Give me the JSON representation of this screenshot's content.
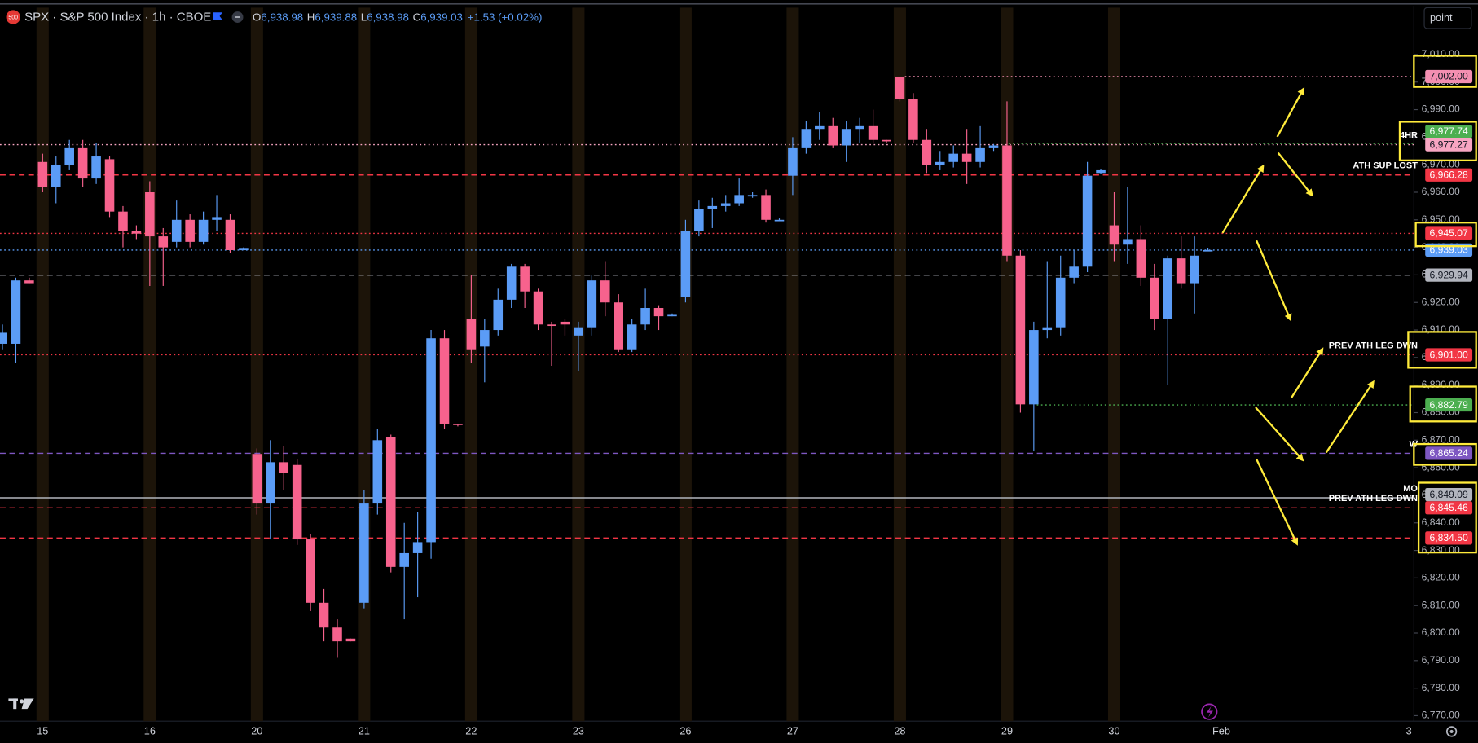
{
  "header": {
    "badge": "500",
    "symbol": "SPX · S&P 500 Index · 1h · CBOE",
    "ohlc": [
      {
        "key": "O",
        "value": "6,938.98"
      },
      {
        "key": "H",
        "value": "6,939.88"
      },
      {
        "key": "L",
        "value": "6,938.98"
      },
      {
        "key": "C",
        "value": "6,939.03"
      }
    ],
    "change": "+1.53 (+0.02%)"
  },
  "toolbar": {
    "scale_button": "point"
  },
  "chart_data": {
    "type": "candlestick",
    "up_color": "#5b9cf6",
    "down_color": "#f7628d",
    "categories": [
      null,
      null,
      null,
      "15",
      null,
      null,
      null,
      null,
      null,
      null,
      null,
      "16",
      null,
      null,
      null,
      null,
      null,
      null,
      null,
      "20",
      null,
      null,
      null,
      null,
      null,
      null,
      null,
      "21",
      null,
      null,
      null,
      null,
      null,
      null,
      null,
      "22",
      null,
      null,
      null,
      null,
      null,
      null,
      null,
      "23",
      null,
      null,
      null,
      null,
      null,
      null,
      null,
      "26",
      null,
      null,
      null,
      null,
      null,
      null,
      null,
      "27",
      null,
      null,
      null,
      null,
      null,
      null,
      null,
      "28",
      null,
      null,
      null,
      null,
      null,
      null,
      null,
      "29",
      null,
      null,
      null,
      null,
      null,
      null,
      null,
      "30",
      null,
      null,
      null,
      null,
      null,
      null,
      null,
      "Feb",
      null,
      null,
      null,
      null,
      null,
      null,
      null,
      null,
      null,
      null,
      null,
      null,
      null,
      "3"
    ],
    "open": [
      6905,
      6905,
      6928,
      6971,
      6962,
      6970,
      6976,
      6965,
      6972,
      6953,
      6946,
      6960,
      6944,
      6942,
      6950,
      6942,
      6950,
      6950,
      6939,
      6865,
      6847,
      6862,
      6861,
      6834,
      6811,
      6802,
      6798,
      6811,
      6847,
      6871,
      6824,
      6829,
      6833,
      6907,
      6876,
      6914,
      6904,
      6910,
      6921,
      6933,
      6924,
      6912,
      6913,
      6908,
      6911,
      6928,
      6920,
      6903,
      6912,
      6918,
      6915,
      6922,
      6946,
      6954,
      6955,
      6956,
      6958.5,
      6959,
      6949.5,
      6966,
      6976,
      6983,
      6984,
      6977,
      6983,
      6984,
      6979,
      7002,
      6994,
      6979,
      6970,
      6971,
      6974,
      6971,
      6976,
      6977,
      6937,
      6883,
      6910,
      6911,
      6929,
      6933,
      6967,
      6948,
      6941,
      6943,
      6929,
      6914,
      6936,
      6927,
      6938.98,
      null,
      null,
      null,
      null,
      null,
      null,
      null,
      null,
      null,
      null,
      null,
      null,
      null,
      null,
      null
    ],
    "high": [
      6912,
      6929,
      6929,
      6974,
      6973,
      6979,
      6979,
      6978,
      6973,
      6955,
      6948,
      6964,
      6947,
      6957,
      6952,
      6953,
      6959,
      6952,
      6940,
      6867,
      6870,
      6868,
      6863,
      6836,
      6816,
      6805,
      6798,
      6852,
      6874,
      6872,
      6840,
      6844,
      6910,
      6910,
      6876,
      6930,
      6914,
      6925,
      6934,
      6934,
      6925,
      6913,
      6914,
      6913,
      6930,
      6935,
      6923,
      6914,
      6925,
      6919,
      6916,
      6950,
      6957,
      6958,
      6959,
      6965,
      6960,
      6961,
      6950.5,
      6980,
      6986,
      6989,
      6987,
      6986,
      6987,
      6990,
      6979,
      7002,
      6996,
      6983,
      6975,
      6977,
      6983,
      6984,
      6977.5,
      6993,
      6939,
      6913,
      6935,
      6937,
      6939,
      6971,
      6968.5,
      6960,
      6962,
      6948,
      6934,
      6937,
      6944,
      6944,
      6939.88,
      null,
      null,
      null,
      null,
      null,
      null,
      null,
      null,
      null,
      null,
      null,
      null,
      null,
      null,
      null
    ],
    "low": [
      6903,
      6898,
      6927,
      6960,
      6956,
      6968,
      6962,
      6963,
      6951,
      6940,
      6943,
      6926,
      6926,
      6940,
      6940,
      6941,
      6946,
      6938,
      6939,
      6843,
      6834,
      6852,
      6832,
      6808,
      6797,
      6791,
      6797,
      6809,
      6843,
      6822,
      6805,
      6813,
      6827,
      6874,
      6875,
      6898,
      6891,
      6908,
      6918,
      6918,
      6910,
      6897,
      6908,
      6895,
      6908,
      6915,
      6902,
      6902,
      6910,
      6910,
      6915,
      6920,
      6944,
      6947,
      6953,
      6955,
      6958,
      6949,
      6949.5,
      6959,
      6974,
      6979,
      6976,
      6971,
      6978,
      6978,
      6978,
      6993,
      6978,
      6967,
      6968,
      6969,
      6963,
      6969,
      6975,
      6935,
      6880,
      6866,
      6907,
      6908,
      6927,
      6931,
      6966.5,
      6935,
      6934,
      6926,
      6910,
      6890,
      6925,
      6916,
      6938.98,
      null,
      null,
      null,
      null,
      null,
      null,
      null,
      null,
      null,
      null,
      null,
      null,
      null,
      null,
      null
    ],
    "close": [
      6909,
      6928,
      6927,
      6962,
      6970,
      6976,
      6965,
      6973,
      6953,
      6946,
      6945,
      6944,
      6940,
      6950,
      6942,
      6950,
      6951,
      6939,
      6939.5,
      6847,
      6862,
      6858,
      6834,
      6811,
      6802,
      6797,
      6797,
      6847,
      6870,
      6824,
      6829,
      6833,
      6907,
      6876,
      6875.5,
      6903,
      6910,
      6921,
      6933,
      6924,
      6912,
      6911.5,
      6912,
      6911,
      6928,
      6920,
      6903,
      6912,
      6918,
      6915,
      6915.5,
      6946,
      6954,
      6955,
      6956,
      6959,
      6959,
      6950,
      6950,
      6976,
      6983,
      6984,
      6977,
      6983,
      6984,
      6979,
      6978.5,
      6994,
      6979,
      6970,
      6971,
      6974,
      6971,
      6976,
      6977,
      6937,
      6883,
      6910,
      6911,
      6929,
      6933,
      6966,
      6968,
      6941,
      6943,
      6929,
      6914,
      6936,
      6927,
      6937,
      6939.03,
      null,
      null,
      null,
      null,
      null,
      null,
      null,
      null,
      null,
      null,
      null,
      null,
      null,
      null,
      null
    ],
    "ylim": [
      6768,
      7027
    ],
    "yticks": [
      {
        "value": 7010,
        "label": "7,010.00"
      },
      {
        "value": 7000,
        "label": "7,000.00"
      },
      {
        "value": 6990,
        "label": "6,990.00"
      },
      {
        "value": 6980,
        "label": "6,980.00"
      },
      {
        "value": 6970,
        "label": "6,970.00"
      },
      {
        "value": 6960,
        "label": "6,960.00"
      },
      {
        "value": 6950,
        "label": "6,950.00"
      },
      {
        "value": 6940,
        "label": "6,940.00"
      },
      {
        "value": 6930,
        "label": "6,930.00"
      },
      {
        "value": 6920,
        "label": "6,920.00"
      },
      {
        "value": 6910,
        "label": "6,910.00"
      },
      {
        "value": 6900,
        "label": "6,900.00"
      },
      {
        "value": 6890,
        "label": "6,890.00"
      },
      {
        "value": 6880,
        "label": "6,880.00"
      },
      {
        "value": 6870,
        "label": "6,870.00"
      },
      {
        "value": 6860,
        "label": "6,860.00"
      },
      {
        "value": 6850,
        "label": "6,850.00"
      },
      {
        "value": 6840,
        "label": "6,840.00"
      },
      {
        "value": 6830,
        "label": "6,830.00"
      },
      {
        "value": 6820,
        "label": "6,820.00"
      },
      {
        "value": 6810,
        "label": "6,810.00"
      },
      {
        "value": 6800,
        "label": "6,800.00"
      },
      {
        "value": 6790,
        "label": "6,790.00"
      },
      {
        "value": 6780,
        "label": "6,780.00"
      },
      {
        "value": 6770,
        "label": "6,770.00"
      }
    ],
    "grid": false,
    "levels": [
      {
        "value": 7002,
        "label": "7,002.00",
        "color": "#f48fb1",
        "style": "dotted"
      },
      {
        "value": 6977.74,
        "label": "6,977.74",
        "color": "#4caf50",
        "style": "dotted"
      },
      {
        "value": 6977.27,
        "label": "6,977.27",
        "color": "#f8a5c2",
        "style": "dotted",
        "text": "4HR"
      },
      {
        "value": 6966.28,
        "label": "6,966.28",
        "color": "#f23645",
        "style": "dashed",
        "text": "ATH SUP LOST"
      },
      {
        "value": 6945.07,
        "label": "6,945.07",
        "color": "#f23645",
        "style": "dotted"
      },
      {
        "value": 6939.03,
        "label": "6,939.03",
        "color": "#5b9cf6",
        "style": "dotted"
      },
      {
        "value": 6929.94,
        "label": "6,929.94",
        "color": "#b2b5be",
        "style": "dashed"
      },
      {
        "value": 6901,
        "label": "6,901.00",
        "color": "#f23645",
        "style": "dotted",
        "text": "PREV ATH LEG DWN"
      },
      {
        "value": 6882.79,
        "label": "6,882.79",
        "color": "#4caf50",
        "style": "dotted"
      },
      {
        "value": 6865.24,
        "label": "6,865.24",
        "color": "#7e57c2",
        "style": "dashed",
        "text": "W"
      },
      {
        "value": 6849.09,
        "label": "6,849.09",
        "color": "#b2b5be",
        "style": "solid",
        "text": "MO"
      },
      {
        "value": 6845.46,
        "label": "6,845.46",
        "color": "#f23645",
        "style": "dashed",
        "text": "PREV ATH LEG DWN"
      },
      {
        "value": 6834.5,
        "label": "6,834.50",
        "color": "#f23645",
        "style": "dashed"
      }
    ]
  }
}
